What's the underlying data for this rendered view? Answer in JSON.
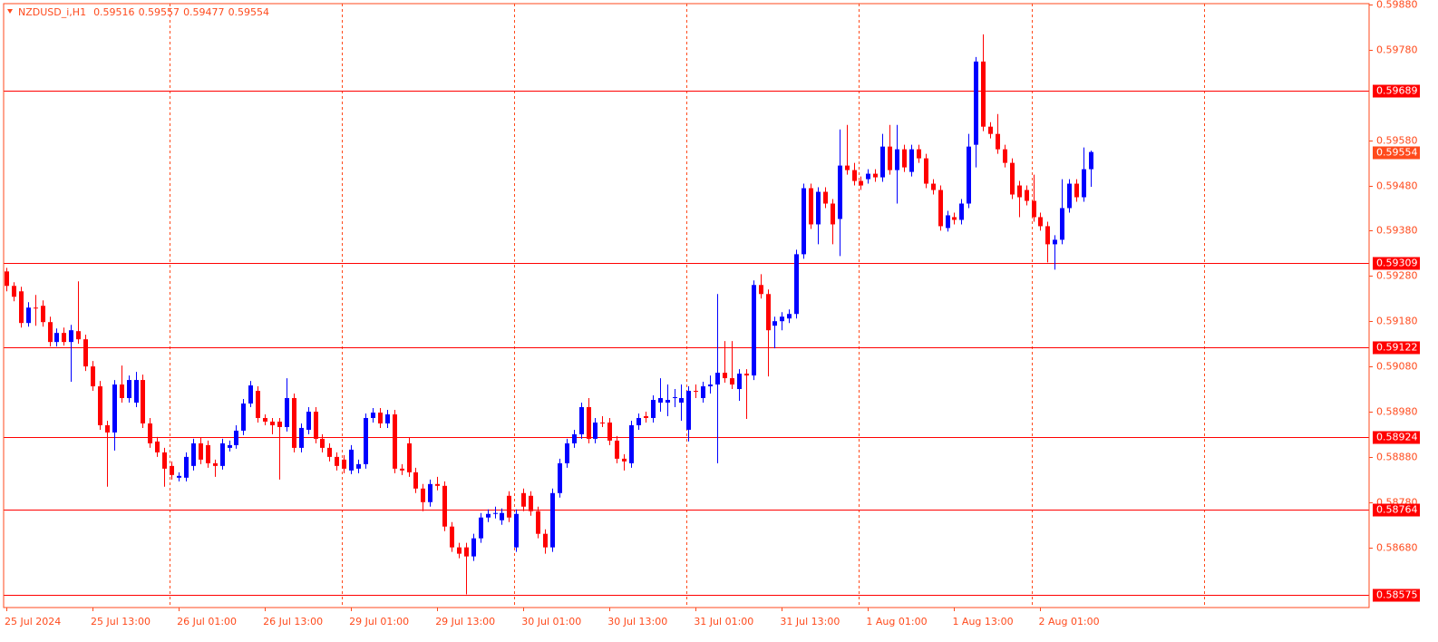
{
  "chart_data": {
    "type": "candlestick",
    "symbol": "NZDUSD_i,H1",
    "up_color": "#0000ff",
    "down_color": "#ff0000",
    "level_color": "#ff0000",
    "bid_color": "#ff4a1c",
    "ylim": [
      0.58547,
      0.59882
    ],
    "yticks": [
      {
        "value": 0.5988,
        "label": "0.59880"
      },
      {
        "value": 0.5978,
        "label": "0.59780"
      },
      {
        "value": 0.5958,
        "label": "0.59580"
      },
      {
        "value": 0.5948,
        "label": "0.59480"
      },
      {
        "value": 0.5938,
        "label": "0.59380"
      },
      {
        "value": 0.5928,
        "label": "0.59280"
      },
      {
        "value": 0.5918,
        "label": "0.59180"
      },
      {
        "value": 0.5908,
        "label": "0.59080"
      },
      {
        "value": 0.5898,
        "label": "0.58980"
      },
      {
        "value": 0.5888,
        "label": "0.58880"
      },
      {
        "value": 0.5878,
        "label": "0.58780"
      },
      {
        "value": 0.5868,
        "label": "0.58680"
      }
    ],
    "levels": [
      0.59689,
      0.59309,
      0.59122,
      0.58924,
      0.58764,
      0.58575
    ],
    "categories": [
      "25 Jul 2024",
      null,
      null,
      null,
      null,
      null,
      null,
      null,
      null,
      null,
      null,
      null,
      "25 Jul 13:00",
      null,
      null,
      null,
      null,
      null,
      null,
      null,
      null,
      null,
      null,
      null,
      "26 Jul 01:00",
      null,
      null,
      null,
      null,
      null,
      null,
      null,
      null,
      null,
      null,
      null,
      "26 Jul 13:00",
      null,
      null,
      null,
      null,
      null,
      null,
      null,
      null,
      null,
      null,
      null,
      "29 Jul 01:00",
      null,
      null,
      null,
      null,
      null,
      null,
      null,
      null,
      null,
      null,
      null,
      "29 Jul 13:00",
      null,
      null,
      null,
      null,
      null,
      null,
      null,
      null,
      null,
      null,
      null,
      "30 Jul 01:00",
      null,
      null,
      null,
      null,
      null,
      null,
      null,
      null,
      null,
      null,
      null,
      "30 Jul 13:00",
      null,
      null,
      null,
      null,
      null,
      null,
      null,
      null,
      null,
      null,
      null,
      "31 Jul 01:00",
      null,
      null,
      null,
      null,
      null,
      null,
      null,
      null,
      null,
      null,
      null,
      "31 Jul 13:00",
      null,
      null,
      null,
      null,
      null,
      null,
      null,
      null,
      null,
      null,
      null,
      "1 Aug 01:00",
      null,
      null,
      null,
      null,
      null,
      null,
      null,
      null,
      null,
      null,
      null,
      "1 Aug 13:00",
      null,
      null,
      null,
      null,
      null,
      null,
      null,
      null,
      null,
      null,
      null,
      "2 Aug 01:00",
      null,
      null,
      null,
      null,
      null,
      null,
      null
    ],
    "ohlc": [
      [
        0.5929,
        0.59298,
        0.59246,
        0.59258
      ],
      [
        0.59258,
        0.59266,
        0.59224,
        0.59234
      ],
      [
        0.59246,
        0.59256,
        0.59166,
        0.59176
      ],
      [
        0.59176,
        0.59222,
        0.59168,
        0.5921
      ],
      [
        0.5921,
        0.59238,
        0.5917,
        0.59208
      ],
      [
        0.59214,
        0.59226,
        0.59168,
        0.59178
      ],
      [
        0.59178,
        0.5919,
        0.59124,
        0.59134
      ],
      [
        0.59134,
        0.59164,
        0.59124,
        0.59154
      ],
      [
        0.59154,
        0.59166,
        0.59126,
        0.59134
      ],
      [
        0.59134,
        0.59172,
        0.59046,
        0.5916
      ],
      [
        0.59158,
        0.59268,
        0.5913,
        0.5914
      ],
      [
        0.5914,
        0.5915,
        0.5907,
        0.5908
      ],
      [
        0.5908,
        0.59092,
        0.59026,
        0.59036
      ],
      [
        0.59036,
        0.59048,
        0.5894,
        0.5895
      ],
      [
        0.5895,
        0.5896,
        0.58814,
        0.58934
      ],
      [
        0.58934,
        0.5905,
        0.58894,
        0.5904
      ],
      [
        0.5904,
        0.59082,
        0.59,
        0.5901
      ],
      [
        0.5901,
        0.5906,
        0.59,
        0.5905
      ],
      [
        0.59,
        0.59068,
        0.5899,
        0.5905
      ],
      [
        0.5905,
        0.59062,
        0.58944,
        0.58954
      ],
      [
        0.58954,
        0.58966,
        0.589,
        0.5891
      ],
      [
        0.58914,
        0.58924,
        0.5888,
        0.5889
      ],
      [
        0.5889,
        0.589,
        0.58814,
        0.58854
      ],
      [
        0.5886,
        0.5887,
        0.5883,
        0.5884
      ],
      [
        0.58834,
        0.58846,
        0.58826,
        0.58838
      ],
      [
        0.58834,
        0.5889,
        0.58826,
        0.5888
      ],
      [
        0.5886,
        0.5892,
        0.5885,
        0.5891
      ],
      [
        0.5891,
        0.58922,
        0.58864,
        0.58874
      ],
      [
        0.58906,
        0.58916,
        0.58856,
        0.58866
      ],
      [
        0.58866,
        0.58874,
        0.58836,
        0.5886
      ],
      [
        0.5886,
        0.5892,
        0.58852,
        0.5891
      ],
      [
        0.589,
        0.58916,
        0.58892,
        0.58906
      ],
      [
        0.58906,
        0.5895,
        0.58898,
        0.58938
      ],
      [
        0.58938,
        0.59008,
        0.58928,
        0.58998
      ],
      [
        0.58998,
        0.59048,
        0.5899,
        0.59038
      ],
      [
        0.59026,
        0.59036,
        0.58956,
        0.58966
      ],
      [
        0.58966,
        0.58974,
        0.5895,
        0.58958
      ],
      [
        0.58958,
        0.58966,
        0.5893,
        0.5895
      ],
      [
        0.58958,
        0.58966,
        0.5883,
        0.58946
      ],
      [
        0.58946,
        0.59054,
        0.58936,
        0.5901
      ],
      [
        0.5901,
        0.5902,
        0.5889,
        0.589
      ],
      [
        0.589,
        0.58954,
        0.5889,
        0.58944
      ],
      [
        0.5894,
        0.5899,
        0.5893,
        0.5898
      ],
      [
        0.5898,
        0.5899,
        0.5891,
        0.5892
      ],
      [
        0.5892,
        0.5893,
        0.5889,
        0.589
      ],
      [
        0.589,
        0.5891,
        0.5887,
        0.5888
      ],
      [
        0.5888,
        0.5889,
        0.5885,
        0.5886
      ],
      [
        0.58874,
        0.58884,
        0.58844,
        0.58854
      ],
      [
        0.5885,
        0.58906,
        0.58842,
        0.58896
      ],
      [
        0.58854,
        0.58874,
        0.58844,
        0.58864
      ],
      [
        0.58864,
        0.58976,
        0.58854,
        0.58966
      ],
      [
        0.58966,
        0.58988,
        0.58956,
        0.58978
      ],
      [
        0.58978,
        0.58988,
        0.58944,
        0.58954
      ],
      [
        0.58954,
        0.58984,
        0.58944,
        0.58974
      ],
      [
        0.58974,
        0.58984,
        0.58844,
        0.58854
      ],
      [
        0.58854,
        0.58864,
        0.5884,
        0.5885
      ],
      [
        0.5891,
        0.58922,
        0.58836,
        0.58846
      ],
      [
        0.58846,
        0.58856,
        0.588,
        0.5881
      ],
      [
        0.5881,
        0.5882,
        0.5876,
        0.5878
      ],
      [
        0.5878,
        0.5883,
        0.5877,
        0.5882
      ],
      [
        0.5882,
        0.58836,
        0.58806,
        0.58816
      ],
      [
        0.58816,
        0.58826,
        0.58716,
        0.58726
      ],
      [
        0.58726,
        0.58736,
        0.5867,
        0.5868
      ],
      [
        0.5868,
        0.5869,
        0.58656,
        0.58666
      ],
      [
        0.5868,
        0.5869,
        0.58576,
        0.5866
      ],
      [
        0.5866,
        0.5871,
        0.5865,
        0.587
      ],
      [
        0.587,
        0.58756,
        0.5869,
        0.58746
      ],
      [
        0.58746,
        0.58764,
        0.58736,
        0.58754
      ],
      [
        0.58754,
        0.5877,
        0.58744,
        0.58756
      ],
      [
        0.5874,
        0.58766,
        0.5873,
        0.58756
      ],
      [
        0.58794,
        0.58804,
        0.58736,
        0.58746
      ],
      [
        0.5868,
        0.58764,
        0.5867,
        0.58754
      ],
      [
        0.588,
        0.5881,
        0.5876,
        0.5877
      ],
      [
        0.58794,
        0.58804,
        0.5875,
        0.5876
      ],
      [
        0.5876,
        0.5877,
        0.587,
        0.5871
      ],
      [
        0.5871,
        0.5872,
        0.58666,
        0.5868
      ],
      [
        0.5868,
        0.5881,
        0.5867,
        0.588
      ],
      [
        0.588,
        0.58876,
        0.5879,
        0.58866
      ],
      [
        0.58866,
        0.5892,
        0.58856,
        0.5891
      ],
      [
        0.5891,
        0.5894,
        0.589,
        0.5893
      ],
      [
        0.5893,
        0.59,
        0.5892,
        0.5899
      ],
      [
        0.5899,
        0.5901,
        0.5891,
        0.5892
      ],
      [
        0.5892,
        0.58966,
        0.5891,
        0.58956
      ],
      [
        0.58956,
        0.5897,
        0.58946,
        0.58954
      ],
      [
        0.58956,
        0.58966,
        0.58906,
        0.58916
      ],
      [
        0.58916,
        0.58926,
        0.58866,
        0.58876
      ],
      [
        0.58876,
        0.58886,
        0.5885,
        0.5887
      ],
      [
        0.58866,
        0.5896,
        0.58856,
        0.5895
      ],
      [
        0.5895,
        0.58976,
        0.5894,
        0.58966
      ],
      [
        0.5897,
        0.5898,
        0.58956,
        0.58966
      ],
      [
        0.58966,
        0.59016,
        0.58956,
        0.59006
      ],
      [
        0.59,
        0.59054,
        0.5898,
        0.5901
      ],
      [
        0.59,
        0.5904,
        0.5897,
        0.59006
      ],
      [
        0.5901,
        0.5903,
        0.5899,
        0.59012
      ],
      [
        0.59,
        0.5904,
        0.5896,
        0.5901
      ],
      [
        0.5894,
        0.59036,
        0.58914,
        0.59026
      ],
      [
        0.59026,
        0.5904,
        0.5901,
        0.59024
      ],
      [
        0.5901,
        0.59046,
        0.59,
        0.59036
      ],
      [
        0.59036,
        0.5906,
        0.5902,
        0.5904
      ],
      [
        0.5904,
        0.5924,
        0.58866,
        0.59066
      ],
      [
        0.59066,
        0.59136,
        0.59044,
        0.59054
      ],
      [
        0.59054,
        0.59136,
        0.5903,
        0.5904
      ],
      [
        0.5903,
        0.59074,
        0.59004,
        0.59064
      ],
      [
        0.59064,
        0.59074,
        0.58964,
        0.5906
      ],
      [
        0.5906,
        0.5927,
        0.5905,
        0.5926
      ],
      [
        0.5926,
        0.59284,
        0.5923,
        0.5924
      ],
      [
        0.5924,
        0.5925,
        0.59058,
        0.5916
      ],
      [
        0.5917,
        0.5919,
        0.5912,
        0.5918
      ],
      [
        0.5918,
        0.592,
        0.5916,
        0.5919
      ],
      [
        0.59186,
        0.59206,
        0.59176,
        0.59196
      ],
      [
        0.59196,
        0.59338,
        0.59186,
        0.59328
      ],
      [
        0.59328,
        0.59484,
        0.59318,
        0.59474
      ],
      [
        0.59474,
        0.59484,
        0.59384,
        0.59394
      ],
      [
        0.59394,
        0.59476,
        0.5935,
        0.59466
      ],
      [
        0.59466,
        0.59476,
        0.5943,
        0.5944
      ],
      [
        0.5944,
        0.5945,
        0.5935,
        0.59394
      ],
      [
        0.59406,
        0.59604,
        0.59324,
        0.59524
      ],
      [
        0.59524,
        0.59614,
        0.59504,
        0.59514
      ],
      [
        0.59514,
        0.5953,
        0.5948,
        0.5949
      ],
      [
        0.5949,
        0.595,
        0.5947,
        0.5948
      ],
      [
        0.59494,
        0.59516,
        0.59484,
        0.59506
      ],
      [
        0.59506,
        0.59516,
        0.59488,
        0.59498
      ],
      [
        0.59498,
        0.59594,
        0.59488,
        0.59566
      ],
      [
        0.59566,
        0.59614,
        0.59504,
        0.59514
      ],
      [
        0.59514,
        0.59614,
        0.5944,
        0.5956
      ],
      [
        0.5956,
        0.5957,
        0.5951,
        0.5952
      ],
      [
        0.5951,
        0.5957,
        0.595,
        0.5956
      ],
      [
        0.5956,
        0.5957,
        0.5953,
        0.5954
      ],
      [
        0.5954,
        0.5955,
        0.59474,
        0.59484
      ],
      [
        0.59484,
        0.59494,
        0.5946,
        0.5947
      ],
      [
        0.5947,
        0.5948,
        0.5938,
        0.5939
      ],
      [
        0.59386,
        0.59424,
        0.59378,
        0.59414
      ],
      [
        0.5941,
        0.5942,
        0.59394,
        0.59404
      ],
      [
        0.59404,
        0.5945,
        0.59394,
        0.5944
      ],
      [
        0.5944,
        0.59594,
        0.5943,
        0.59566
      ],
      [
        0.5957,
        0.59764,
        0.5952,
        0.59754
      ],
      [
        0.59754,
        0.59814,
        0.596,
        0.5961
      ],
      [
        0.5961,
        0.5962,
        0.59584,
        0.59594
      ],
      [
        0.59594,
        0.59638,
        0.5955,
        0.5956
      ],
      [
        0.5956,
        0.5957,
        0.5952,
        0.5953
      ],
      [
        0.5953,
        0.5954,
        0.5945,
        0.5946
      ],
      [
        0.5948,
        0.5949,
        0.5941,
        0.59454
      ],
      [
        0.5947,
        0.5948,
        0.59436,
        0.59446
      ],
      [
        0.59446,
        0.59504,
        0.594,
        0.5941
      ],
      [
        0.5941,
        0.5942,
        0.5938,
        0.5939
      ],
      [
        0.5939,
        0.594,
        0.5931,
        0.5935
      ],
      [
        0.5935,
        0.5937,
        0.59294,
        0.5936
      ],
      [
        0.5936,
        0.59494,
        0.5935,
        0.5943
      ],
      [
        0.5943,
        0.59494,
        0.5942,
        0.59484
      ],
      [
        0.59484,
        0.59494,
        0.59444,
        0.59454
      ],
      [
        0.59454,
        0.59564,
        0.59444,
        0.59516
      ],
      [
        0.59516,
        0.59557,
        0.59477,
        0.59554
      ]
    ]
  }
}
